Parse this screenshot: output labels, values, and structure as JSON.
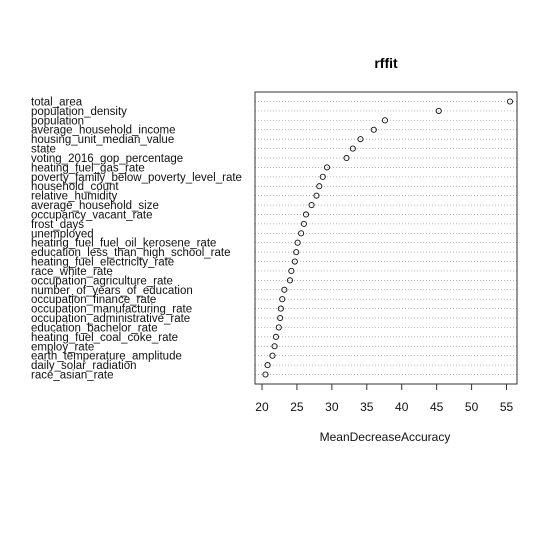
{
  "chart_data": {
    "type": "scatter",
    "title": "rffit",
    "xlabel": "MeanDecreaseAccuracy",
    "ylabel": "",
    "xlim": [
      19,
      56.5
    ],
    "x_ticks": [
      20,
      25,
      30,
      35,
      40,
      45,
      50,
      55
    ],
    "grid": "dotted horizontal lines per variable",
    "categories": [
      "total_area",
      "population_density",
      "population",
      "average_household_income",
      "housing_unit_median_value",
      "state",
      "voting_2016_gop_percentage",
      "heating_fuel_gas_rate",
      "poverty_family_below_poverty_level_rate",
      "household_count",
      "relative_humidity",
      "average_household_size",
      "occupancy_vacant_rate",
      "frost_days",
      "unemployed",
      "heating_fuel_fuel_oil_kerosene_rate",
      "education_less_than_high_school_rate",
      "heating_fuel_electricity_rate",
      "race_white_rate",
      "occupation_agriculture_rate",
      "number_of_years_of_education",
      "occupation_finance_rate",
      "occupation_manufacturing_rate",
      "occupation_administrative_rate",
      "education_bachelor_rate",
      "heating_fuel_coal_coke_rate",
      "employ_rate",
      "earth_temperature_amplitude",
      "daily_solar_radiation",
      "race_asian_rate"
    ],
    "values": [
      55.5,
      45.3,
      37.6,
      36.0,
      34.1,
      33.0,
      32.1,
      29.3,
      28.7,
      28.2,
      27.8,
      27.1,
      26.3,
      26.0,
      25.6,
      25.1,
      24.9,
      24.7,
      24.2,
      24.0,
      23.2,
      22.9,
      22.7,
      22.6,
      22.4,
      22.0,
      21.8,
      21.5,
      20.8,
      20.5
    ]
  }
}
